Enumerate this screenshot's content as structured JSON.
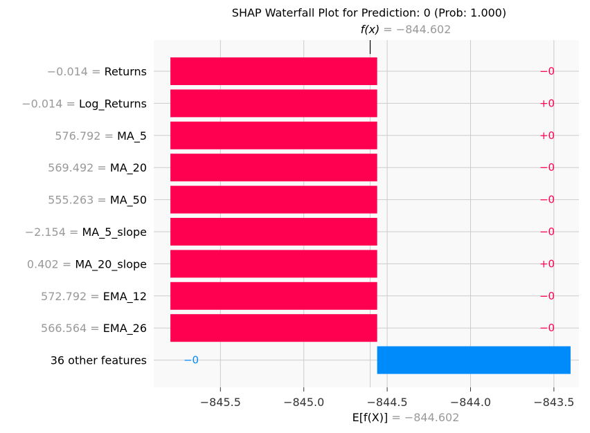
{
  "chart_data": {
    "type": "waterfall",
    "title": "SHAP Waterfall Plot for Prediction: 0 (Prob: 1.000)",
    "fx_label": "f(x)",
    "fx_value": "−844.602",
    "ex_label": "E[f(X)]",
    "ex_value": "−844.602",
    "xlim": [
      -845.9,
      -843.35
    ],
    "xticks": [
      {
        "value": -845.5,
        "label": "−845.5"
      },
      {
        "value": -845.0,
        "label": "−845.0"
      },
      {
        "value": -844.5,
        "label": "−844.5"
      },
      {
        "value": -844.0,
        "label": "−844.0"
      },
      {
        "value": -843.5,
        "label": "−843.5"
      }
    ],
    "expected_value": -844.602,
    "fx": -844.602,
    "features": [
      {
        "value_text": "−0.014",
        "feature": "Returns",
        "start": -845.8,
        "end": -844.56,
        "sign": "negative",
        "contribution_label": "−0"
      },
      {
        "value_text": "−0.014",
        "feature": "Log_Returns",
        "start": -845.8,
        "end": -844.56,
        "sign": "positive",
        "contribution_label": "+0"
      },
      {
        "value_text": "576.792",
        "feature": "MA_5",
        "start": -845.8,
        "end": -844.56,
        "sign": "positive",
        "contribution_label": "+0"
      },
      {
        "value_text": "569.492",
        "feature": "MA_20",
        "start": -845.8,
        "end": -844.56,
        "sign": "negative",
        "contribution_label": "−0"
      },
      {
        "value_text": "555.263",
        "feature": "MA_50",
        "start": -845.8,
        "end": -844.56,
        "sign": "negative",
        "contribution_label": "−0"
      },
      {
        "value_text": "−2.154",
        "feature": "MA_5_slope",
        "start": -845.8,
        "end": -844.56,
        "sign": "negative",
        "contribution_label": "−0"
      },
      {
        "value_text": "0.402",
        "feature": "MA_20_slope",
        "start": -845.8,
        "end": -844.56,
        "sign": "positive",
        "contribution_label": "+0"
      },
      {
        "value_text": "572.792",
        "feature": "EMA_12",
        "start": -845.8,
        "end": -844.56,
        "sign": "negative",
        "contribution_label": "−0"
      },
      {
        "value_text": "566.564",
        "feature": "EMA_26",
        "start": -845.8,
        "end": -844.56,
        "sign": "negative",
        "contribution_label": "−0"
      },
      {
        "value_text": "",
        "feature": "36 other features",
        "start": -844.56,
        "end": -843.4,
        "sign": "blue",
        "contribution_label": "−0"
      }
    ],
    "colors": {
      "positive": "#ff0051",
      "negative": "#ff0051",
      "blue": "#008bfb",
      "value_text": "#999999",
      "feature_text": "#000000",
      "background": "#f9f9f9",
      "grid": "#cccccc"
    }
  }
}
